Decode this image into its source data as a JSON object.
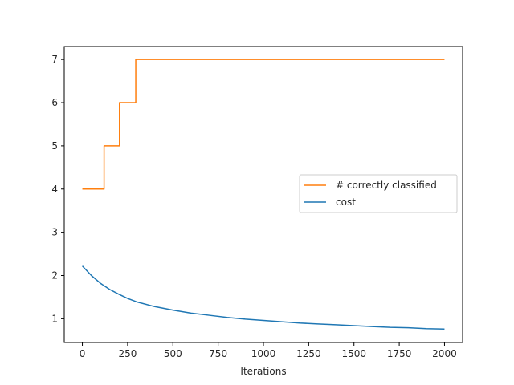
{
  "chart_data": {
    "type": "line",
    "xlabel": "Iterations",
    "ylabel": "",
    "title": "",
    "xlim": [
      -100,
      2100
    ],
    "ylim": [
      0.45,
      7.3
    ],
    "x_ticks": [
      0,
      250,
      500,
      750,
      1000,
      1250,
      1500,
      1750,
      2000
    ],
    "y_ticks": [
      1,
      2,
      3,
      4,
      5,
      6,
      7
    ],
    "grid": false,
    "legend_position": "center-right",
    "series": [
      {
        "name": "# correctly classified",
        "color": "#ff7f0e",
        "step": true,
        "x": [
          0,
          120,
          120,
          205,
          205,
          295,
          295,
          2000
        ],
        "y": [
          4,
          4,
          5,
          5,
          6,
          6,
          7,
          7
        ]
      },
      {
        "name": "cost",
        "color": "#1f77b4",
        "x": [
          0,
          50,
          100,
          150,
          200,
          250,
          300,
          400,
          500,
          600,
          700,
          800,
          900,
          1000,
          1100,
          1200,
          1300,
          1400,
          1500,
          1600,
          1700,
          1800,
          1900,
          2000
        ],
        "y": [
          2.22,
          2.0,
          1.82,
          1.68,
          1.57,
          1.47,
          1.39,
          1.28,
          1.2,
          1.13,
          1.08,
          1.03,
          0.99,
          0.96,
          0.93,
          0.9,
          0.88,
          0.86,
          0.84,
          0.82,
          0.8,
          0.79,
          0.77,
          0.76
        ]
      }
    ]
  }
}
